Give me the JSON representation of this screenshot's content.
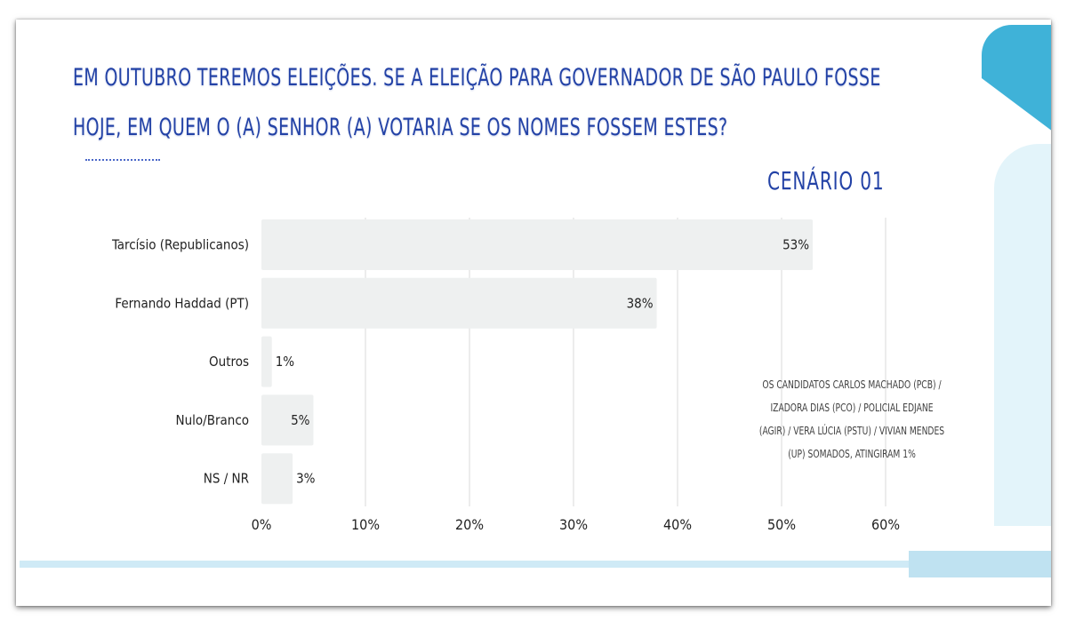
{
  "title_lines": [
    "EM OUTUBRO TEREMOS ELEIÇÕES. SE A ELEIÇÃO PARA GOVERNADOR DE SÃO PAULO FOSSE",
    "HOJE, EM QUEM O (A) SENHOR (A) VOTARIA SE OS NOMES FOSSEM ESTES?"
  ],
  "scenario": "CENÁRIO 01",
  "footnote": "OS CANDIDATOS  CARLOS MACHADO (PCB) / IZADORA DIAS (PCO) / POLICIAL EDJANE (AGIR) / VERA LÚCIA (PSTU) / VIVIAN MENDES (UP) SOMADOS, ATINGIRAM 1%",
  "colors": {
    "title": "#2342a6",
    "bar": "#eef0f0",
    "grid": "#d9d9d9",
    "accent": "#3fb2d8",
    "accent_light": "#cfeaf6"
  },
  "chart_data": {
    "type": "bar",
    "orientation": "horizontal",
    "categories": [
      "Tarcísio (Republicanos)",
      "Fernando Haddad (PT)",
      "Outros",
      "Nulo/Branco",
      "NS / NR"
    ],
    "values": [
      53,
      38,
      1,
      5,
      3
    ],
    "data_labels": [
      "53%",
      "38%",
      "1%",
      "5%",
      "3%"
    ],
    "xlim": [
      0,
      60
    ],
    "xticks": [
      0,
      10,
      20,
      30,
      40,
      50,
      60
    ],
    "xtick_labels": [
      "0%",
      "10%",
      "20%",
      "30%",
      "40%",
      "50%",
      "60%"
    ],
    "grid": "vertical",
    "legend": "none"
  }
}
